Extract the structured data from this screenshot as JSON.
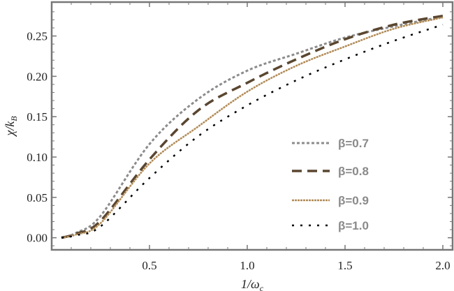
{
  "chart_data": {
    "type": "line",
    "title": "",
    "xlabel": "1/ω",
    "xlabel_sub": "c",
    "ylabel": "χ/k",
    "ylabel_sub": "B",
    "xlim": [
      0,
      2.05
    ],
    "ylim": [
      -0.015,
      0.292
    ],
    "xticks": [
      0.5,
      1.0,
      1.5,
      2.0
    ],
    "xtick_labels": [
      "0.5",
      "1.0",
      "1.5",
      "2.0"
    ],
    "yticks": [
      0.0,
      0.05,
      0.1,
      0.15,
      0.2,
      0.25
    ],
    "ytick_labels": [
      "0.00",
      "0.05",
      "0.10",
      "0.15",
      "0.20",
      "0.25"
    ],
    "grid": false,
    "legend_position": "bottom-right",
    "x": [
      0.05,
      0.125,
      0.25,
      0.5,
      0.75,
      1.0,
      1.25,
      1.5,
      1.75,
      2.0
    ],
    "series": [
      {
        "name": "β=0.7",
        "color": "#8c8c8c",
        "dash": "4,3",
        "width": 3,
        "values": [
          0,
          0.006,
          0.027,
          0.116,
          0.172,
          0.207,
          0.228,
          0.248,
          0.262,
          0.274
        ]
      },
      {
        "name": "β=0.8",
        "color": "#5a4630",
        "dash": "14,8",
        "width": 3.5,
        "values": [
          0,
          0.005,
          0.021,
          0.097,
          0.158,
          0.192,
          0.221,
          0.246,
          0.264,
          0.275
        ]
      },
      {
        "name": "β=0.9",
        "color": "#b08a55",
        "dash": "3,1",
        "width": 2.5,
        "values": [
          0,
          0.004,
          0.018,
          0.092,
          0.138,
          0.181,
          0.213,
          0.237,
          0.259,
          0.273
        ]
      },
      {
        "name": "β=1.0",
        "color": "#000000",
        "dash": "3,9",
        "width": 2.5,
        "values": [
          0,
          0.003,
          0.014,
          0.074,
          0.126,
          0.164,
          0.195,
          0.221,
          0.244,
          0.264
        ]
      }
    ]
  }
}
